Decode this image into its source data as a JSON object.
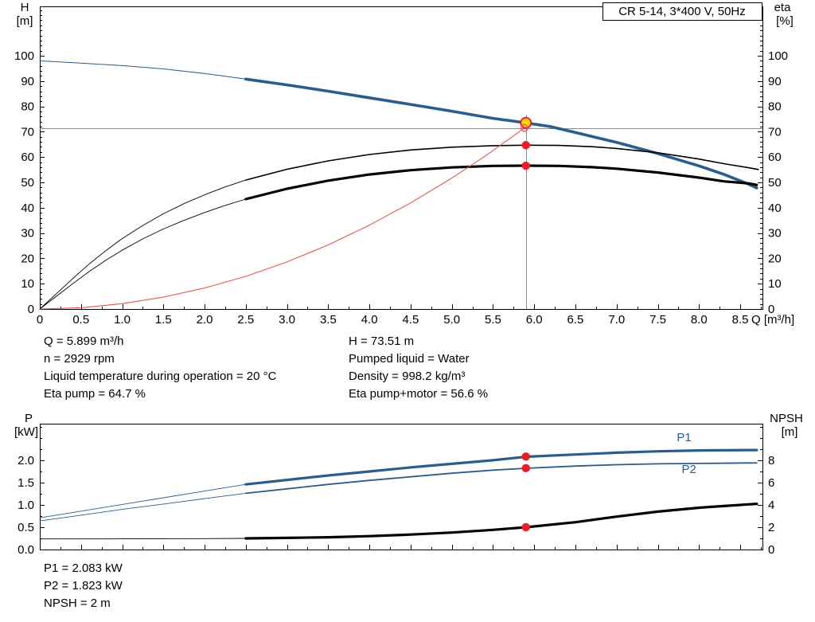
{
  "colors": {
    "curve_blue": "#2a5d8c",
    "curve_black": "#000000",
    "curve_red": "#e2574e",
    "marker_red": "#ee1c25",
    "duty_yellow": "#ffd500",
    "duty_ring": "#e8112d",
    "guide_gray": "#8c8c8c"
  },
  "results_top": {
    "col1": [
      "Q = 5.899 m³/h",
      "n = 2929 rpm",
      "Liquid temperature during operation = 20 °C",
      "Eta pump = 64.7 %"
    ],
    "col2": [
      "H = 73.51 m",
      "Pumped liquid = Water",
      "Density = 998.2 kg/m³",
      "Eta pump+motor = 56.6 %"
    ]
  },
  "results_bottom": [
    "P1 = 2.083 kW",
    "P2 = 1.823 kW",
    "NPSH = 2 m"
  ],
  "chart_data": [
    {
      "type": "line",
      "name": "qh-performance",
      "title": "CR 5-14, 3*400 V, 50Hz",
      "x_axis": {
        "label": "Q [m³/h]",
        "min": 0,
        "max": 8.77,
        "minor_step": 0.25,
        "major_ticks": [
          0,
          0.5,
          1,
          1.5,
          2,
          2.5,
          3,
          3.5,
          4,
          4.5,
          5,
          5.5,
          6,
          6.5,
          7,
          7.5,
          8,
          8.5
        ],
        "tick_labels": [
          "0",
          "0.5",
          "1.0",
          "1.5",
          "2.0",
          "2.5",
          "3.0",
          "3.5",
          "4.0",
          "4.5",
          "5.0",
          "5.5",
          "6.0",
          "6.5",
          "7.0",
          "7.5",
          "8.0",
          "8.5"
        ]
      },
      "y_left": {
        "symbol": "H",
        "unit": "[m]",
        "min": 0,
        "max": 119.5,
        "minor_step": 2,
        "major_ticks": [
          0,
          10,
          20,
          30,
          40,
          50,
          60,
          70,
          80,
          90,
          100
        ],
        "tick_labels": [
          "0",
          "10",
          "20",
          "30",
          "40",
          "50",
          "60",
          "70",
          "80",
          "90",
          "100"
        ]
      },
      "y_right": {
        "symbol": "eta",
        "unit": "[%]",
        "min": 0,
        "max": 119.5,
        "minor_step": 2,
        "major_ticks": [
          0,
          10,
          20,
          30,
          40,
          50,
          60,
          70,
          80,
          90,
          100
        ],
        "tick_labels": [
          "0",
          "10",
          "20",
          "30",
          "40",
          "50",
          "60",
          "70",
          "80",
          "90",
          "100"
        ]
      },
      "guides": [
        {
          "type": "h",
          "v": 71.5
        },
        {
          "type": "v",
          "q": 5.899,
          "v1": 76.5,
          "v2": 0
        }
      ],
      "series": [
        {
          "name": "head-thin",
          "color": "#2a5d8c",
          "width": 1,
          "axis": "left",
          "points": [
            [
              0,
              98
            ],
            [
              0.5,
              97.1
            ],
            [
              1,
              96.1
            ],
            [
              1.5,
              94.8
            ],
            [
              2,
              93
            ],
            [
              2.5,
              90.8
            ]
          ]
        },
        {
          "name": "head",
          "color": "#2a5d8c",
          "width": 3.6,
          "axis": "left",
          "points": [
            [
              2.5,
              90.8
            ],
            [
              3,
              88.5
            ],
            [
              3.5,
              86
            ],
            [
              4,
              83.4
            ],
            [
              4.5,
              80.8
            ],
            [
              5,
              78.1
            ],
            [
              5.5,
              75.3
            ],
            [
              5.9,
              73.5
            ],
            [
              6.2,
              72
            ],
            [
              6.5,
              69.7
            ],
            [
              7,
              65.8
            ],
            [
              7.5,
              61.4
            ],
            [
              8,
              56.5
            ],
            [
              8.3,
              53.2
            ],
            [
              8.6,
              49.3
            ],
            [
              8.7,
              47.8
            ]
          ]
        },
        {
          "name": "eta-pump-thin",
          "color": "#000000",
          "width": 0.9,
          "axis": "right",
          "points": [
            [
              0,
              0
            ],
            [
              0.2,
              6
            ],
            [
              0.4,
              12
            ],
            [
              0.6,
              17.8
            ],
            [
              0.8,
              23
            ],
            [
              1,
              27.8
            ],
            [
              1.25,
              33
            ],
            [
              1.5,
              37.6
            ],
            [
              1.75,
              41.6
            ],
            [
              2,
              45.1
            ],
            [
              2.25,
              48.2
            ],
            [
              2.5,
              50.9
            ]
          ]
        },
        {
          "name": "eta-pump",
          "color": "#000000",
          "width": 1.6,
          "axis": "right",
          "points": [
            [
              2.5,
              50.9
            ],
            [
              3,
              55.2
            ],
            [
              3.5,
              58.5
            ],
            [
              4,
              61
            ],
            [
              4.5,
              62.8
            ],
            [
              5,
              63.9
            ],
            [
              5.5,
              64.5
            ],
            [
              5.9,
              64.7
            ],
            [
              6.3,
              64.6
            ],
            [
              6.7,
              64.1
            ],
            [
              7,
              63.4
            ],
            [
              7.5,
              61.7
            ],
            [
              8,
              59.2
            ],
            [
              8.3,
              57.4
            ],
            [
              8.6,
              55.8
            ],
            [
              8.72,
              55.1
            ]
          ]
        },
        {
          "name": "eta-pump-motor-thin",
          "color": "#000000",
          "width": 0.9,
          "axis": "right",
          "points": [
            [
              0,
              0
            ],
            [
              0.2,
              5
            ],
            [
              0.4,
              10
            ],
            [
              0.6,
              14.8
            ],
            [
              0.8,
              19.2
            ],
            [
              1,
              23.2
            ],
            [
              1.25,
              27.7
            ],
            [
              1.5,
              31.6
            ],
            [
              1.75,
              35
            ],
            [
              2,
              38.1
            ],
            [
              2.25,
              40.9
            ],
            [
              2.5,
              43.4
            ]
          ]
        },
        {
          "name": "eta-pump-motor",
          "color": "#000000",
          "width": 3.2,
          "axis": "right",
          "points": [
            [
              2.5,
              43.4
            ],
            [
              3,
              47.5
            ],
            [
              3.5,
              50.7
            ],
            [
              4,
              53.1
            ],
            [
              4.5,
              54.8
            ],
            [
              5,
              55.9
            ],
            [
              5.5,
              56.5
            ],
            [
              5.9,
              56.6
            ],
            [
              6.3,
              56.5
            ],
            [
              6.7,
              56
            ],
            [
              7,
              55.4
            ],
            [
              7.5,
              53.9
            ],
            [
              8,
              51.9
            ],
            [
              8.3,
              50.4
            ],
            [
              8.6,
              49.6
            ],
            [
              8.7,
              49
            ]
          ]
        },
        {
          "name": "system-curve",
          "color": "#e2574e",
          "width": 1.1,
          "axis": "left",
          "points": [
            [
              0,
              0
            ],
            [
              0.5,
              0.5
            ],
            [
              1,
              2.1
            ],
            [
              1.5,
              4.7
            ],
            [
              2,
              8.3
            ],
            [
              2.5,
              12.9
            ],
            [
              3,
              18.6
            ],
            [
              3.5,
              25.3
            ],
            [
              4,
              33.1
            ],
            [
              4.5,
              41.9
            ],
            [
              5,
              51.7
            ],
            [
              5.4,
              60.3
            ],
            [
              5.7,
              67.2
            ],
            [
              5.88,
              71.5
            ]
          ]
        }
      ],
      "markers": [
        {
          "name": "duty-point",
          "kind": "duty",
          "q": 5.899,
          "v": 73.51,
          "axis": "left"
        },
        {
          "name": "eta-pump-duty",
          "kind": "dot",
          "q": 5.899,
          "v": 64.7,
          "axis": "right"
        },
        {
          "name": "eta-pump-motor-duty",
          "kind": "dot",
          "q": 5.899,
          "v": 56.6,
          "axis": "right"
        },
        {
          "name": "system-curve-duty",
          "kind": "open",
          "q": 5.88,
          "v": 71.5,
          "axis": "left"
        }
      ]
    },
    {
      "type": "line",
      "name": "power-npsh",
      "x_axis": {
        "label": "",
        "min": 0,
        "max": 8.77,
        "minor_step": 0.25,
        "major_ticks": [
          0,
          0.5,
          1,
          1.5,
          2,
          2.5,
          3,
          3.5,
          4,
          4.5,
          5,
          5.5,
          6,
          6.5,
          7,
          7.5,
          8,
          8.5
        ],
        "tick_labels": null
      },
      "y_left": {
        "symbol": "P",
        "unit": "[kW]",
        "min": 0,
        "max": 2.82,
        "minor_step": 0.25,
        "major_ticks": [
          0,
          0.5,
          1,
          1.5,
          2
        ],
        "tick_labels": [
          "0.0",
          "0.5",
          "1.0",
          "1.5",
          "2.0"
        ]
      },
      "y_right": {
        "symbol": "NPSH",
        "unit": "[m]",
        "min": 0,
        "max": 11.28,
        "minor_step": 1,
        "major_ticks": [
          0,
          2,
          4,
          6,
          8
        ],
        "tick_labels": [
          "0",
          "2",
          "4",
          "6",
          "8"
        ]
      },
      "guides": [],
      "series": [
        {
          "name": "p1-thin",
          "color": "#2a5d8c",
          "width": 0.9,
          "axis": "left",
          "points": [
            [
              0,
              0.71
            ],
            [
              0.5,
              0.86
            ],
            [
              1,
              1.01
            ],
            [
              1.5,
              1.16
            ],
            [
              2,
              1.31
            ],
            [
              2.5,
              1.46
            ]
          ]
        },
        {
          "name": "p1",
          "color": "#2a5d8c",
          "width": 3.2,
          "axis": "left",
          "points": [
            [
              2.5,
              1.46
            ],
            [
              3,
              1.56
            ],
            [
              3.5,
              1.66
            ],
            [
              4,
              1.75
            ],
            [
              4.5,
              1.84
            ],
            [
              5,
              1.92
            ],
            [
              5.5,
              2
            ],
            [
              5.9,
              2.08
            ],
            [
              6.5,
              2.13
            ],
            [
              7,
              2.17
            ],
            [
              7.5,
              2.2
            ],
            [
              8,
              2.22
            ],
            [
              8.6,
              2.23
            ],
            [
              8.7,
              2.23
            ]
          ]
        },
        {
          "name": "p2-thin",
          "color": "#2a5d8c",
          "width": 0.9,
          "axis": "left",
          "points": [
            [
              0,
              0.64
            ],
            [
              0.5,
              0.77
            ],
            [
              1,
              0.9
            ],
            [
              1.5,
              1.02
            ],
            [
              2,
              1.14
            ],
            [
              2.5,
              1.26
            ]
          ]
        },
        {
          "name": "p2",
          "color": "#2a5d8c",
          "width": 1.8,
          "axis": "left",
          "points": [
            [
              2.5,
              1.26
            ],
            [
              3,
              1.36
            ],
            [
              3.5,
              1.46
            ],
            [
              4,
              1.55
            ],
            [
              4.5,
              1.63
            ],
            [
              5,
              1.71
            ],
            [
              5.5,
              1.78
            ],
            [
              5.9,
              1.82
            ],
            [
              6.5,
              1.87
            ],
            [
              7,
              1.9
            ],
            [
              7.5,
              1.92
            ],
            [
              8,
              1.93
            ],
            [
              8.6,
              1.94
            ],
            [
              8.7,
              1.94
            ]
          ]
        },
        {
          "name": "npsh-thin",
          "color": "#000000",
          "width": 0.9,
          "axis": "right",
          "points": [
            [
              0,
              0.95
            ],
            [
              0.5,
              0.95
            ],
            [
              1,
              0.96
            ],
            [
              1.5,
              0.97
            ],
            [
              2,
              0.98
            ],
            [
              2.5,
              1
            ]
          ]
        },
        {
          "name": "npsh",
          "color": "#000000",
          "width": 3.2,
          "axis": "right",
          "points": [
            [
              2.5,
              1
            ],
            [
              3,
              1.04
            ],
            [
              3.5,
              1.1
            ],
            [
              4,
              1.2
            ],
            [
              4.5,
              1.34
            ],
            [
              5,
              1.52
            ],
            [
              5.5,
              1.76
            ],
            [
              5.9,
              2
            ],
            [
              6.5,
              2.45
            ],
            [
              7,
              2.95
            ],
            [
              7.5,
              3.4
            ],
            [
              8,
              3.75
            ],
            [
              8.3,
              3.9
            ],
            [
              8.6,
              4.05
            ],
            [
              8.7,
              4.1
            ]
          ]
        }
      ],
      "labels": [
        {
          "text": "P1",
          "q": 7.73,
          "v": 2.52,
          "axis": "left",
          "color": "#2a5d8c"
        },
        {
          "text": "P2",
          "q": 7.79,
          "v": 1.8,
          "axis": "left",
          "color": "#2a5d8c"
        }
      ],
      "markers": [
        {
          "name": "p1-duty",
          "kind": "dot",
          "q": 5.899,
          "v": 2.083,
          "axis": "left"
        },
        {
          "name": "p2-duty",
          "kind": "dot",
          "q": 5.899,
          "v": 1.823,
          "axis": "left"
        },
        {
          "name": "npsh-duty",
          "kind": "dot",
          "q": 5.899,
          "v": 2,
          "axis": "right"
        }
      ]
    }
  ]
}
